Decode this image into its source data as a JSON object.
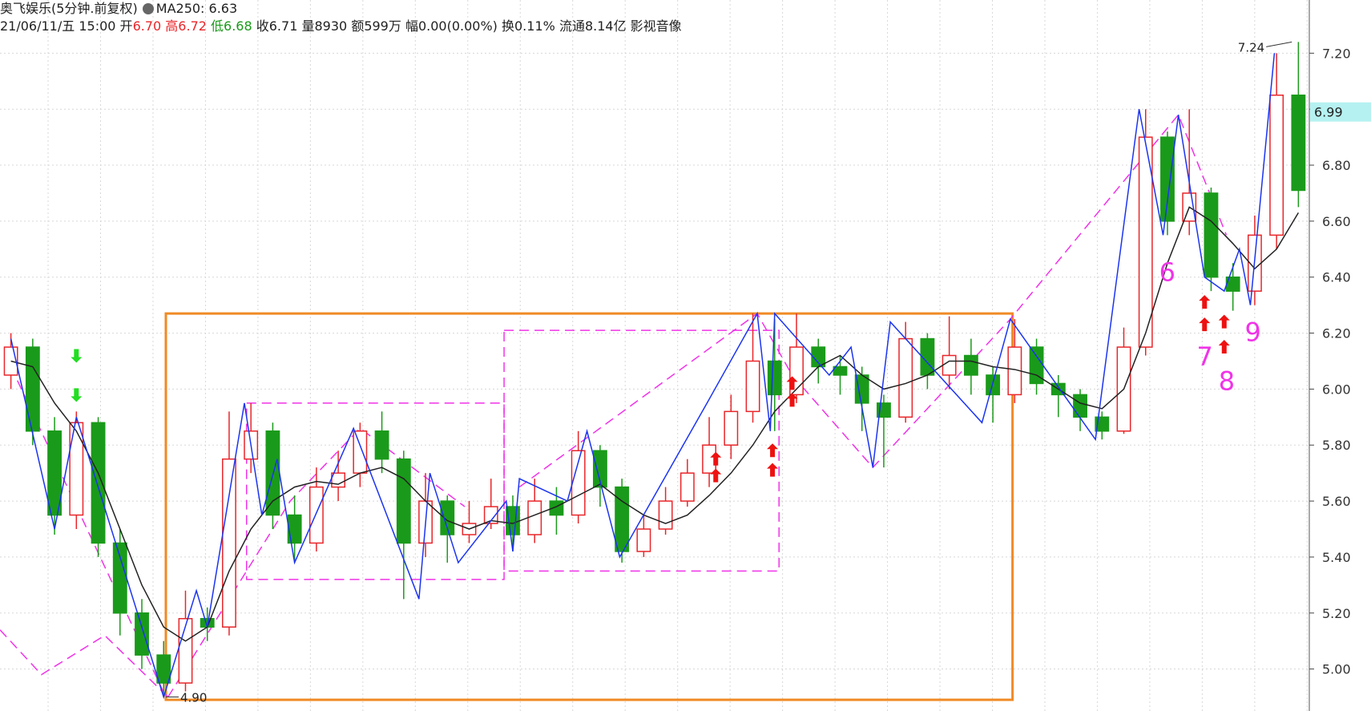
{
  "header": {
    "title": "奥飞娱乐(5分钟.前复权)",
    "ma_label": "MA250: 6.63",
    "date": "21/06/11/五 15:00",
    "open_label": "开",
    "open": "6.70",
    "high_label": "高",
    "high": "6.72",
    "low_label": "低",
    "low": "6.68",
    "close": "收6.71",
    "volume": "量8930",
    "amount": "额599万",
    "change": "幅0.00(0.00%)",
    "turnover": "换0.11%",
    "float": "流通8.14亿",
    "industry": "影视音像"
  },
  "chart_data": {
    "type": "candlestick",
    "up_color": "#e8262a",
    "down_color": "#1a9a1a",
    "open": [
      6.05,
      6.15,
      5.85,
      5.55,
      5.88,
      5.45,
      5.2,
      5.05,
      4.95,
      5.18,
      5.15,
      5.75,
      5.85,
      5.55,
      5.45,
      5.65,
      5.7,
      5.85,
      5.75,
      5.45,
      5.6,
      5.48,
      5.52,
      5.58,
      5.48,
      5.6,
      5.55,
      5.78,
      5.65,
      5.42,
      5.5,
      5.6,
      5.7,
      5.8,
      5.92,
      6.1,
      5.98,
      6.15,
      6.08,
      6.05,
      5.95,
      5.9,
      6.18,
      6.05,
      6.12,
      6.05,
      5.98,
      6.15,
      6.02,
      5.98,
      5.9,
      5.85,
      6.15,
      6.9,
      6.6,
      6.7,
      6.4,
      6.35,
      6.55,
      7.05
    ],
    "high": [
      6.2,
      6.18,
      5.9,
      5.92,
      5.9,
      5.5,
      5.25,
      5.1,
      5.28,
      5.22,
      5.92,
      5.95,
      5.88,
      5.62,
      5.72,
      5.78,
      5.88,
      5.92,
      5.78,
      5.7,
      5.62,
      5.6,
      5.68,
      5.62,
      5.68,
      5.65,
      5.85,
      5.8,
      5.68,
      5.55,
      5.65,
      5.75,
      5.9,
      5.98,
      6.27,
      6.25,
      6.27,
      6.18,
      6.12,
      6.08,
      5.98,
      6.24,
      6.2,
      6.26,
      6.18,
      6.08,
      6.25,
      6.18,
      6.05,
      6.0,
      5.92,
      6.22,
      7.0,
      6.92,
      7.0,
      6.72,
      6.45,
      6.62,
      7.2,
      7.24
    ],
    "low": [
      6.0,
      5.8,
      5.48,
      5.5,
      5.4,
      5.12,
      5.0,
      4.9,
      4.92,
      5.1,
      5.12,
      5.7,
      5.5,
      5.38,
      5.42,
      5.6,
      5.65,
      5.7,
      5.25,
      5.4,
      5.38,
      5.45,
      5.5,
      5.42,
      5.45,
      5.48,
      5.52,
      5.58,
      5.38,
      5.4,
      5.48,
      5.58,
      5.65,
      5.75,
      5.88,
      5.85,
      5.95,
      6.02,
      5.98,
      5.85,
      5.72,
      5.88,
      6.0,
      6.0,
      5.98,
      5.88,
      5.95,
      5.98,
      5.9,
      5.85,
      5.82,
      5.84,
      6.12,
      6.55,
      6.55,
      6.35,
      6.28,
      6.3,
      6.5,
      6.65
    ],
    "close": [
      6.15,
      5.85,
      5.55,
      5.88,
      5.45,
      5.2,
      5.05,
      4.95,
      5.18,
      5.15,
      5.75,
      5.85,
      5.55,
      5.45,
      5.65,
      5.7,
      5.85,
      5.75,
      5.45,
      5.6,
      5.48,
      5.52,
      5.58,
      5.48,
      5.6,
      5.55,
      5.78,
      5.65,
      5.42,
      5.5,
      5.6,
      5.7,
      5.8,
      5.92,
      6.1,
      5.98,
      6.15,
      6.08,
      6.05,
      5.95,
      5.9,
      6.18,
      6.05,
      6.12,
      6.05,
      5.98,
      6.15,
      6.02,
      5.98,
      5.9,
      5.85,
      6.15,
      6.9,
      6.6,
      6.7,
      6.4,
      6.35,
      6.55,
      7.05,
      6.71
    ],
    "ma": {
      "color": "#222222",
      "values": [
        6.1,
        6.08,
        5.95,
        5.85,
        5.7,
        5.5,
        5.3,
        5.15,
        5.1,
        5.15,
        5.35,
        5.5,
        5.6,
        5.65,
        5.67,
        5.66,
        5.7,
        5.72,
        5.68,
        5.6,
        5.53,
        5.5,
        5.53,
        5.52,
        5.55,
        5.58,
        5.62,
        5.66,
        5.6,
        5.55,
        5.52,
        5.55,
        5.62,
        5.7,
        5.8,
        5.92,
        6.0,
        6.08,
        6.12,
        6.05,
        6.0,
        6.02,
        6.05,
        6.1,
        6.1,
        6.08,
        6.07,
        6.05,
        6.0,
        5.95,
        5.93,
        6.0,
        6.2,
        6.45,
        6.65,
        6.6,
        6.52,
        6.43,
        6.5,
        6.63
      ]
    },
    "zigzag": {
      "color": "#1b34f0",
      "x": [
        0,
        2,
        3,
        7,
        8.5,
        9,
        10.7,
        11.5,
        12.2,
        13,
        15.7,
        18.7,
        19.2,
        20.5,
        22.7,
        23,
        23.3,
        25.5,
        26.4,
        27.9,
        31.9,
        34.2,
        34.8,
        35,
        37.5,
        38.5,
        39.5,
        40.3,
        44.5,
        45.8,
        49.7,
        51.7,
        52.8,
        53.5,
        54.7,
        55.6,
        56.3,
        56.8,
        57.9
      ],
      "y": [
        6.18,
        5.5,
        5.9,
        4.9,
        5.28,
        5.15,
        5.95,
        5.55,
        5.75,
        5.38,
        5.86,
        5.25,
        5.7,
        5.38,
        5.6,
        5.42,
        5.68,
        5.6,
        5.85,
        5.4,
        5.95,
        6.27,
        5.85,
        6.27,
        6.05,
        6.15,
        5.72,
        6.24,
        5.88,
        6.25,
        5.82,
        7.0,
        6.55,
        6.98,
        6.4,
        6.35,
        6.5,
        6.3,
        7.2
      ]
    },
    "pink": {
      "color": "#f033e8",
      "lines": [
        {
          "x": [
            -0.5,
            1.4,
            4.3,
            7.2
          ],
          "y": [
            5.14,
            4.98,
            5.12,
            4.9
          ]
        },
        {
          "x": [
            0,
            7.1
          ],
          "y": [
            6.08,
            4.9
          ]
        },
        {
          "x": [
            7.2,
            12.8,
            16,
            20.8
          ],
          "y": [
            4.9,
            5.6,
            5.86,
            5.58
          ]
        },
        {
          "x": [
            23.3,
            34.2,
            35.8,
            39.5,
            45.8,
            53.5,
            55.7
          ],
          "y": [
            5.65,
            6.27,
            6.05,
            5.72,
            6.25,
            6.98,
            6.55
          ]
        }
      ],
      "boxes": [
        {
          "x0": 10.8,
          "x1": 22.6,
          "top": 5.95,
          "bottom": 5.32
        },
        {
          "x0": 22.6,
          "x1": 35.2,
          "top": 6.21,
          "bottom": 5.35
        }
      ]
    },
    "range_box": {
      "color": "#f08a24",
      "x0": 7.1,
      "x1": 45.9,
      "top": 6.27,
      "bottom": 4.89
    },
    "signals": [
      {
        "x": 3,
        "y": 6.12,
        "dir": "down"
      },
      {
        "x": 3,
        "y": 5.98,
        "dir": "down"
      },
      {
        "x": 32.3,
        "y": 5.75,
        "dir": "up"
      },
      {
        "x": 32.3,
        "y": 5.69,
        "dir": "up"
      },
      {
        "x": 34.9,
        "y": 5.78,
        "dir": "up"
      },
      {
        "x": 34.9,
        "y": 5.71,
        "dir": "up"
      },
      {
        "x": 35.8,
        "y": 6.02,
        "dir": "up"
      },
      {
        "x": 35.8,
        "y": 5.96,
        "dir": "up"
      },
      {
        "x": 54.7,
        "y": 6.31,
        "dir": "up"
      },
      {
        "x": 54.7,
        "y": 6.23,
        "dir": "up"
      },
      {
        "x": 55.6,
        "y": 6.24,
        "dir": "up"
      },
      {
        "x": 55.6,
        "y": 6.15,
        "dir": "up"
      }
    ],
    "annotations": [
      {
        "x": 7.1,
        "value": 4.9,
        "label": "4.90",
        "side": "right"
      },
      {
        "x": 58.7,
        "value": 7.24,
        "label": "7.24",
        "side": "left"
      }
    ],
    "wave_labels": {
      "color": "#f033e8",
      "labels": [
        "6",
        "7",
        "8",
        "9"
      ]
    },
    "price_marker": {
      "value": 6.99,
      "label": "6.99"
    },
    "ylim": [
      4.85,
      7.39
    ],
    "yticks": [
      {
        "value": 5,
        "label": "5.00"
      },
      {
        "value": 5.2,
        "label": "5.20"
      },
      {
        "value": 5.4,
        "label": "5.40"
      },
      {
        "value": 5.6,
        "label": "5.60"
      },
      {
        "value": 5.8,
        "label": "5.80"
      },
      {
        "value": 6,
        "label": "6.00"
      },
      {
        "value": 6.2,
        "label": "6.20"
      },
      {
        "value": 6.4,
        "label": "6.40"
      },
      {
        "value": 6.6,
        "label": "6.60"
      },
      {
        "value": 6.8,
        "label": "6.80"
      },
      {
        "value": 7,
        "label": "7.00"
      },
      {
        "value": 7.2,
        "label": "7.20"
      }
    ],
    "grid": true
  }
}
